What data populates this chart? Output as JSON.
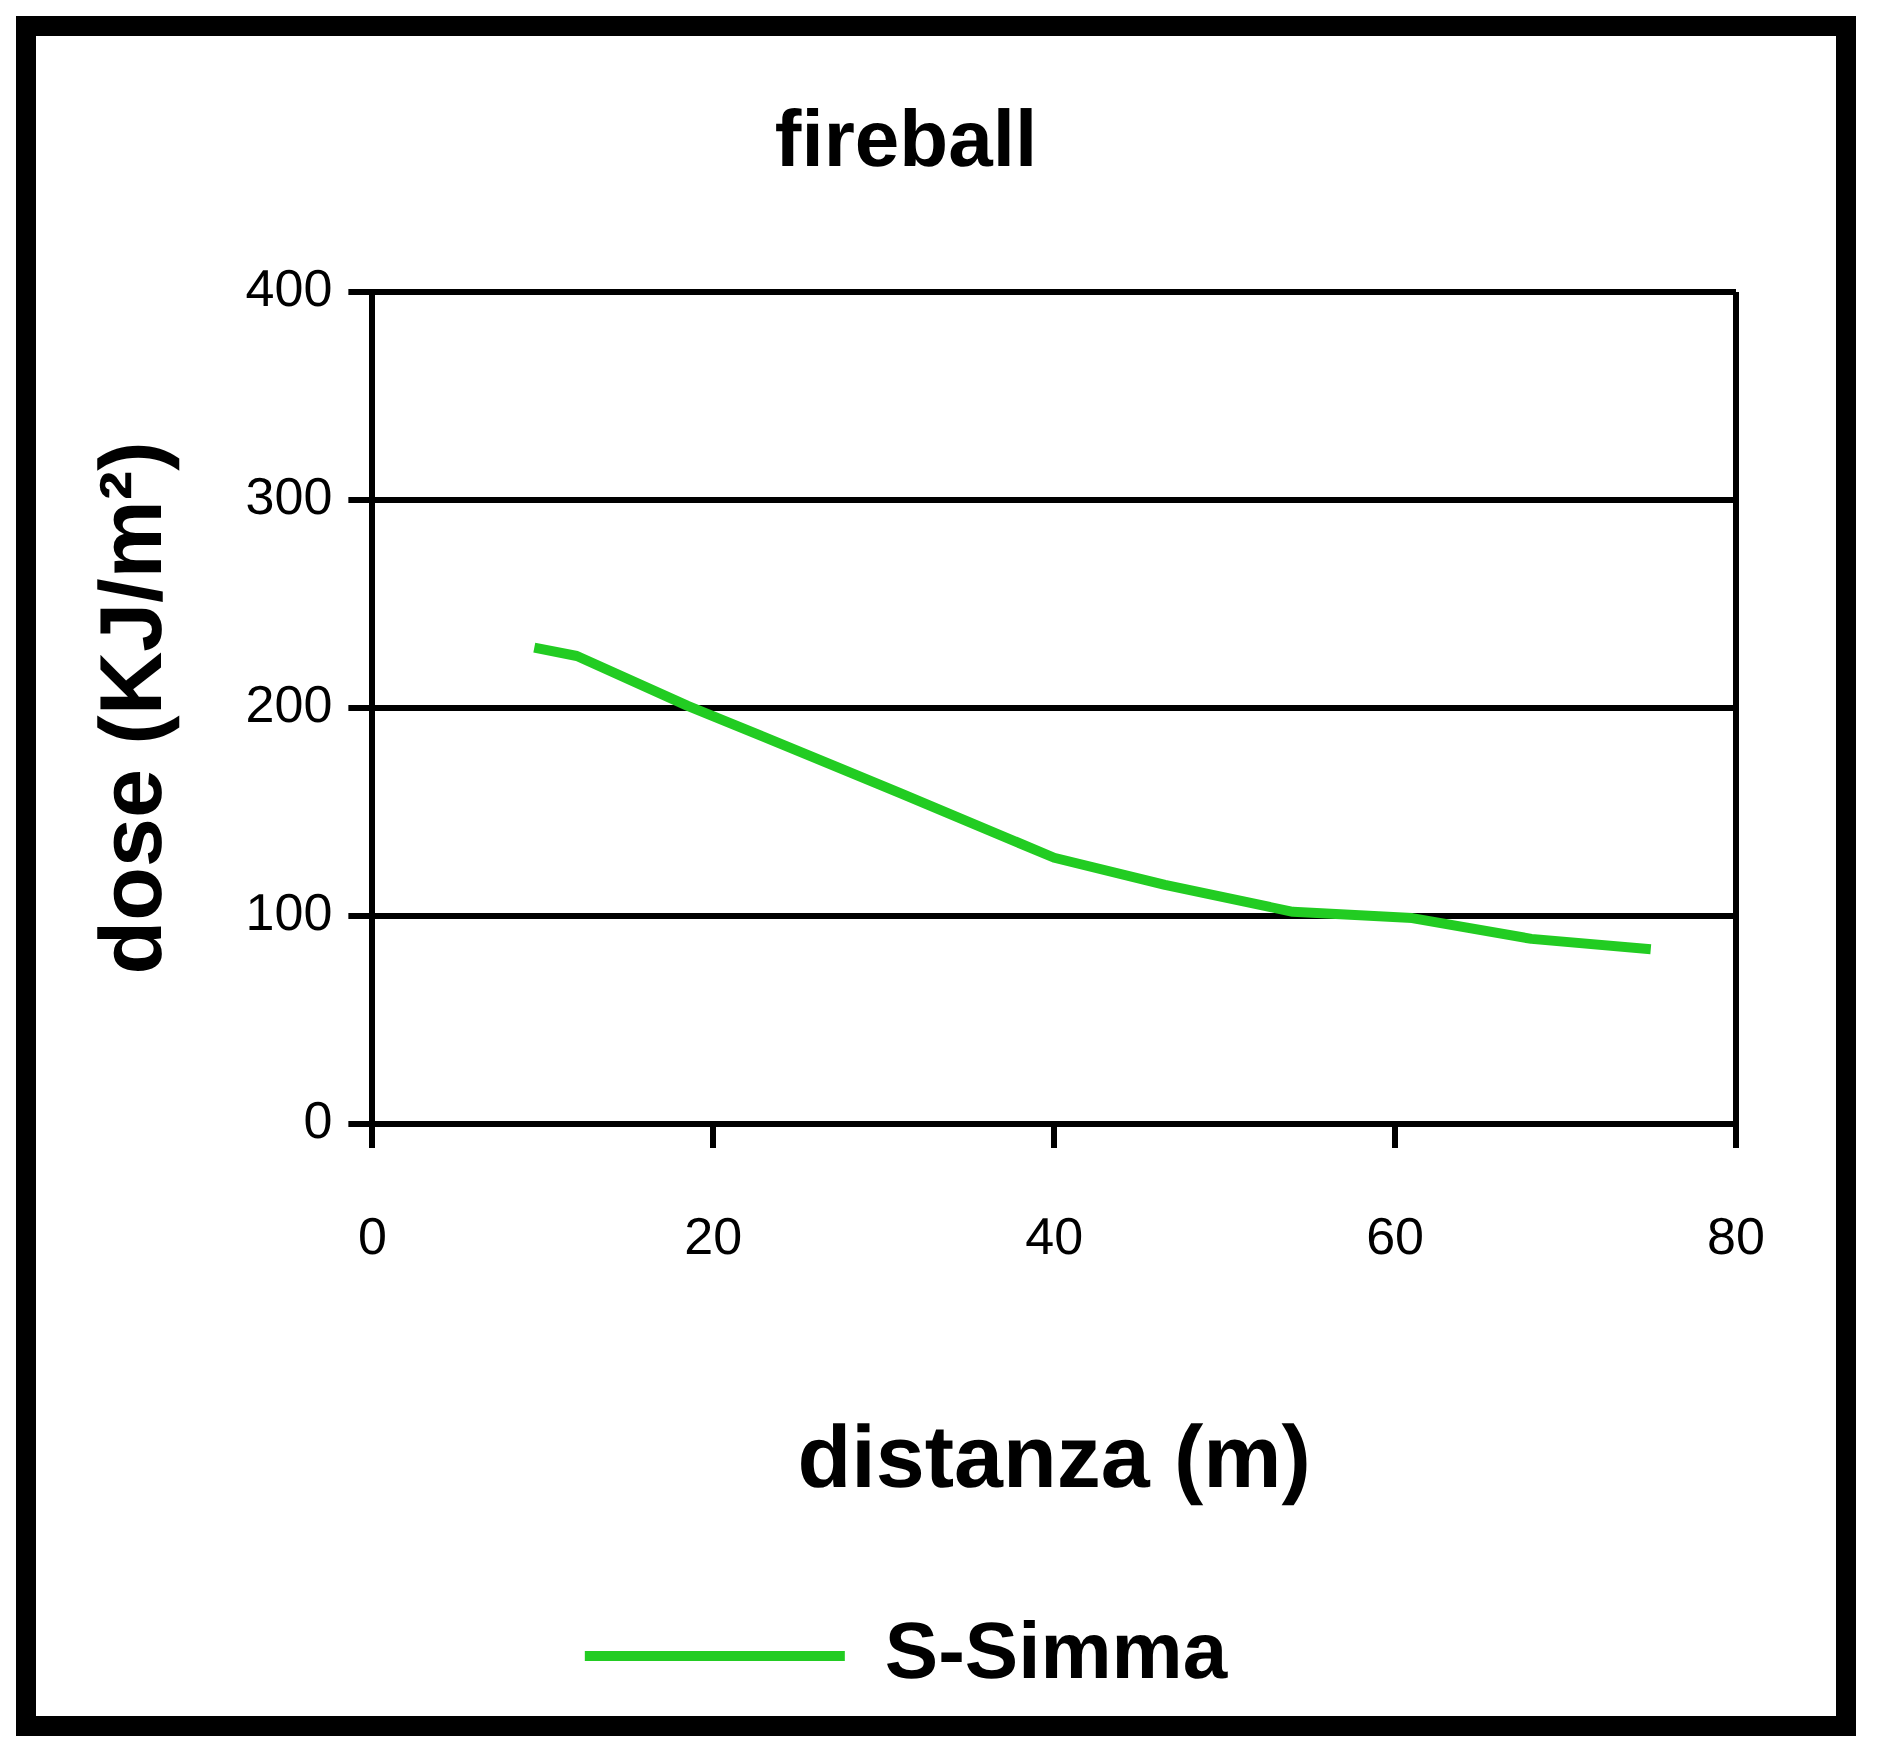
{
  "chart_data": {
    "type": "line",
    "title": "fireball",
    "xlabel": "distanza (m)",
    "ylabel": "dose (KJ/m²)",
    "x": [
      9.5,
      12,
      18.5,
      23,
      31,
      40,
      46.5,
      54,
      61,
      68,
      75
    ],
    "series": [
      {
        "name": "S-Simma",
        "color": "#22cc22",
        "values": [
          229,
          225,
          201,
          186,
          159,
          128,
          115,
          102,
          99,
          89,
          84
        ]
      }
    ],
    "xlim": [
      0,
      80
    ],
    "xticks": [
      0,
      20,
      40,
      60,
      80
    ],
    "ylim": [
      0,
      400
    ],
    "yticks": [
      0,
      100,
      200,
      300,
      400
    ],
    "grid": "y",
    "legend": "bottom",
    "marker": "none",
    "line_style": "solid"
  }
}
